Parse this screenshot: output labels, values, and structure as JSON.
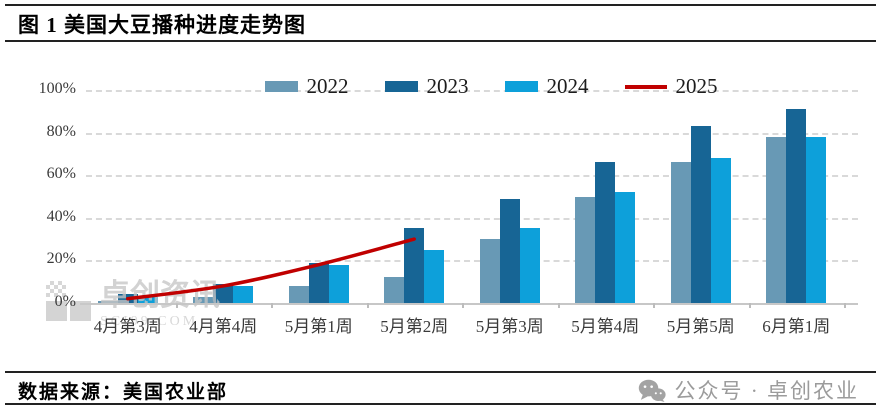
{
  "header": {
    "title": "图 1  美国大豆播种进度走势图"
  },
  "footer": {
    "source": "数据来源：美国农业部",
    "wechat_label": "公众号 · 卓创农业"
  },
  "watermark": {
    "brand": "卓创资讯",
    "site": "SCI99.COM"
  },
  "colors": {
    "bar_2022": "#6899b5",
    "bar_2023": "#176595",
    "bar_2024": "#0da0da",
    "line_2025": "#c00000",
    "grid": "#d9d9d9",
    "axis_text": "#3a3a3a",
    "watermark_gray": "#c6c6c6",
    "footer_gray": "#9b9b9b"
  },
  "chart_data": {
    "type": "bar",
    "title": "美国大豆播种进度走势图",
    "categories": [
      "4月第3周",
      "4月第4周",
      "5月第1周",
      "5月第2周",
      "5月第3周",
      "5月第4周",
      "5月第5周",
      "6月第1周"
    ],
    "series": [
      {
        "name": "2022",
        "type": "bar",
        "color": "#6899b5",
        "values": [
          1,
          3,
          8,
          12,
          30,
          50,
          66,
          78
        ]
      },
      {
        "name": "2023",
        "type": "bar",
        "color": "#176595",
        "values": [
          4,
          9,
          19,
          35,
          49,
          66,
          83,
          91
        ]
      },
      {
        "name": "2024",
        "type": "bar",
        "color": "#0da0da",
        "values": [
          3,
          8,
          18,
          25,
          35,
          52,
          68,
          78
        ]
      },
      {
        "name": "2025",
        "type": "line",
        "color": "#c00000",
        "values": [
          2,
          8,
          18,
          30
        ]
      }
    ],
    "xlabel": "",
    "ylabel": "",
    "ylim": [
      0,
      100
    ],
    "yticks": [
      0,
      20,
      40,
      60,
      80,
      100
    ],
    "ytick_suffix": "%",
    "grid": "horizontal-dashed",
    "legend_position": "top-center"
  }
}
